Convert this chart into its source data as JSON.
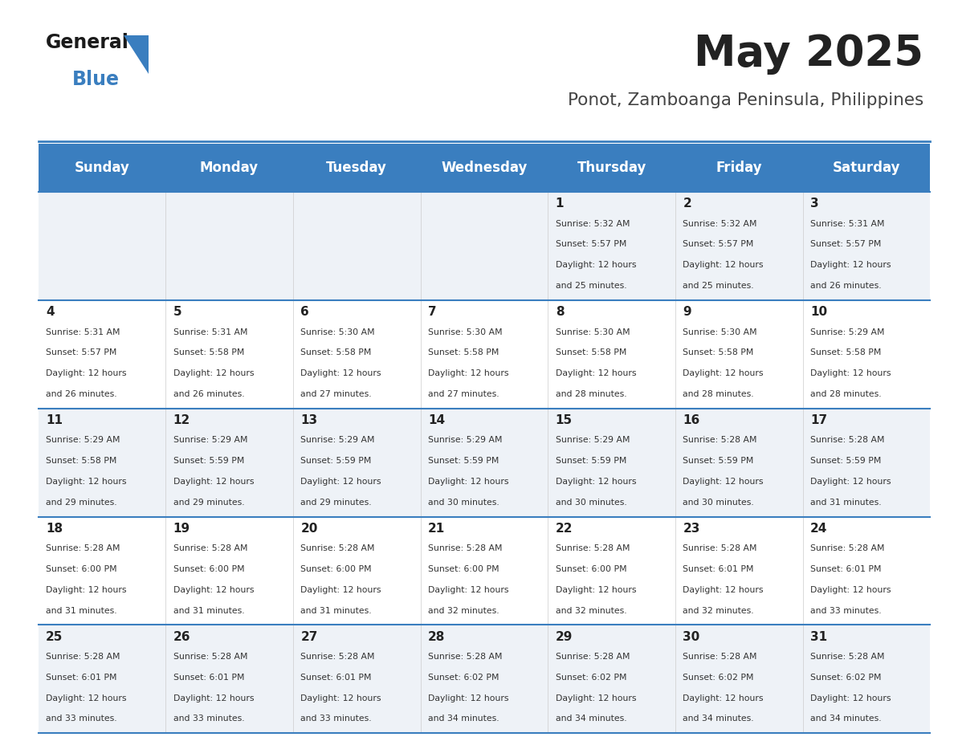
{
  "title": "May 2025",
  "subtitle": "Ponot, Zamboanga Peninsula, Philippines",
  "header_color": "#3a7ebf",
  "header_text_color": "#ffffff",
  "day_names": [
    "Sunday",
    "Monday",
    "Tuesday",
    "Wednesday",
    "Thursday",
    "Friday",
    "Saturday"
  ],
  "title_color": "#222222",
  "subtitle_color": "#444444",
  "odd_row_bg": "#eef2f7",
  "even_row_bg": "#ffffff",
  "divider_color": "#3a7ebf",
  "day_num_color": "#222222",
  "cell_text_color": "#333333",
  "logo_general_color": "#1a1a1a",
  "logo_blue_color": "#3a7ebf",
  "logo_triangle_color": "#3a7ebf",
  "calendar": [
    [
      {
        "day": null,
        "sunrise": null,
        "sunset": null,
        "daylight": null
      },
      {
        "day": null,
        "sunrise": null,
        "sunset": null,
        "daylight": null
      },
      {
        "day": null,
        "sunrise": null,
        "sunset": null,
        "daylight": null
      },
      {
        "day": null,
        "sunrise": null,
        "sunset": null,
        "daylight": null
      },
      {
        "day": 1,
        "sunrise": "5:32 AM",
        "sunset": "5:57 PM",
        "daylight": "12 hours and 25 minutes."
      },
      {
        "day": 2,
        "sunrise": "5:32 AM",
        "sunset": "5:57 PM",
        "daylight": "12 hours and 25 minutes."
      },
      {
        "day": 3,
        "sunrise": "5:31 AM",
        "sunset": "5:57 PM",
        "daylight": "12 hours and 26 minutes."
      }
    ],
    [
      {
        "day": 4,
        "sunrise": "5:31 AM",
        "sunset": "5:57 PM",
        "daylight": "12 hours and 26 minutes."
      },
      {
        "day": 5,
        "sunrise": "5:31 AM",
        "sunset": "5:58 PM",
        "daylight": "12 hours and 26 minutes."
      },
      {
        "day": 6,
        "sunrise": "5:30 AM",
        "sunset": "5:58 PM",
        "daylight": "12 hours and 27 minutes."
      },
      {
        "day": 7,
        "sunrise": "5:30 AM",
        "sunset": "5:58 PM",
        "daylight": "12 hours and 27 minutes."
      },
      {
        "day": 8,
        "sunrise": "5:30 AM",
        "sunset": "5:58 PM",
        "daylight": "12 hours and 28 minutes."
      },
      {
        "day": 9,
        "sunrise": "5:30 AM",
        "sunset": "5:58 PM",
        "daylight": "12 hours and 28 minutes."
      },
      {
        "day": 10,
        "sunrise": "5:29 AM",
        "sunset": "5:58 PM",
        "daylight": "12 hours and 28 minutes."
      }
    ],
    [
      {
        "day": 11,
        "sunrise": "5:29 AM",
        "sunset": "5:58 PM",
        "daylight": "12 hours and 29 minutes."
      },
      {
        "day": 12,
        "sunrise": "5:29 AM",
        "sunset": "5:59 PM",
        "daylight": "12 hours and 29 minutes."
      },
      {
        "day": 13,
        "sunrise": "5:29 AM",
        "sunset": "5:59 PM",
        "daylight": "12 hours and 29 minutes."
      },
      {
        "day": 14,
        "sunrise": "5:29 AM",
        "sunset": "5:59 PM",
        "daylight": "12 hours and 30 minutes."
      },
      {
        "day": 15,
        "sunrise": "5:29 AM",
        "sunset": "5:59 PM",
        "daylight": "12 hours and 30 minutes."
      },
      {
        "day": 16,
        "sunrise": "5:28 AM",
        "sunset": "5:59 PM",
        "daylight": "12 hours and 30 minutes."
      },
      {
        "day": 17,
        "sunrise": "5:28 AM",
        "sunset": "5:59 PM",
        "daylight": "12 hours and 31 minutes."
      }
    ],
    [
      {
        "day": 18,
        "sunrise": "5:28 AM",
        "sunset": "6:00 PM",
        "daylight": "12 hours and 31 minutes."
      },
      {
        "day": 19,
        "sunrise": "5:28 AM",
        "sunset": "6:00 PM",
        "daylight": "12 hours and 31 minutes."
      },
      {
        "day": 20,
        "sunrise": "5:28 AM",
        "sunset": "6:00 PM",
        "daylight": "12 hours and 31 minutes."
      },
      {
        "day": 21,
        "sunrise": "5:28 AM",
        "sunset": "6:00 PM",
        "daylight": "12 hours and 32 minutes."
      },
      {
        "day": 22,
        "sunrise": "5:28 AM",
        "sunset": "6:00 PM",
        "daylight": "12 hours and 32 minutes."
      },
      {
        "day": 23,
        "sunrise": "5:28 AM",
        "sunset": "6:01 PM",
        "daylight": "12 hours and 32 minutes."
      },
      {
        "day": 24,
        "sunrise": "5:28 AM",
        "sunset": "6:01 PM",
        "daylight": "12 hours and 33 minutes."
      }
    ],
    [
      {
        "day": 25,
        "sunrise": "5:28 AM",
        "sunset": "6:01 PM",
        "daylight": "12 hours and 33 minutes."
      },
      {
        "day": 26,
        "sunrise": "5:28 AM",
        "sunset": "6:01 PM",
        "daylight": "12 hours and 33 minutes."
      },
      {
        "day": 27,
        "sunrise": "5:28 AM",
        "sunset": "6:01 PM",
        "daylight": "12 hours and 33 minutes."
      },
      {
        "day": 28,
        "sunrise": "5:28 AM",
        "sunset": "6:02 PM",
        "daylight": "12 hours and 34 minutes."
      },
      {
        "day": 29,
        "sunrise": "5:28 AM",
        "sunset": "6:02 PM",
        "daylight": "12 hours and 34 minutes."
      },
      {
        "day": 30,
        "sunrise": "5:28 AM",
        "sunset": "6:02 PM",
        "daylight": "12 hours and 34 minutes."
      },
      {
        "day": 31,
        "sunrise": "5:28 AM",
        "sunset": "6:02 PM",
        "daylight": "12 hours and 34 minutes."
      }
    ]
  ]
}
